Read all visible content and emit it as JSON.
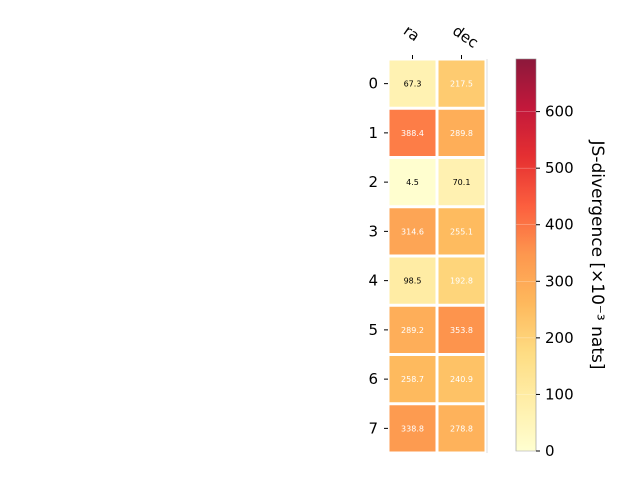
{
  "chart_data": {
    "type": "heatmap",
    "columns": [
      "ra",
      "dec"
    ],
    "rows": [
      "0",
      "1",
      "2",
      "3",
      "4",
      "5",
      "6",
      "7"
    ],
    "values": [
      [
        67.3,
        217.5
      ],
      [
        388.4,
        289.8
      ],
      [
        4.5,
        70.1
      ],
      [
        314.6,
        255.1
      ],
      [
        98.5,
        192.8
      ],
      [
        289.2,
        353.8
      ],
      [
        258.7,
        240.9
      ],
      [
        338.8,
        278.8
      ]
    ],
    "labels": [
      [
        "67.3",
        "217.5"
      ],
      [
        "388.4",
        "289.8"
      ],
      [
        "4.5",
        "70.1"
      ],
      [
        "314.6",
        "255.1"
      ],
      [
        "98.5",
        "192.8"
      ],
      [
        "289.2",
        "353.8"
      ],
      [
        "258.7",
        "240.9"
      ],
      [
        "338.8",
        "278.8"
      ]
    ],
    "colorbar": {
      "label": "JS-divergence [×10⁻³ nats]",
      "min": 0,
      "max": 693,
      "ticks": [
        0,
        100,
        200,
        300,
        400,
        500,
        600
      ],
      "colormap": "YlOrRd"
    },
    "grid": false
  }
}
